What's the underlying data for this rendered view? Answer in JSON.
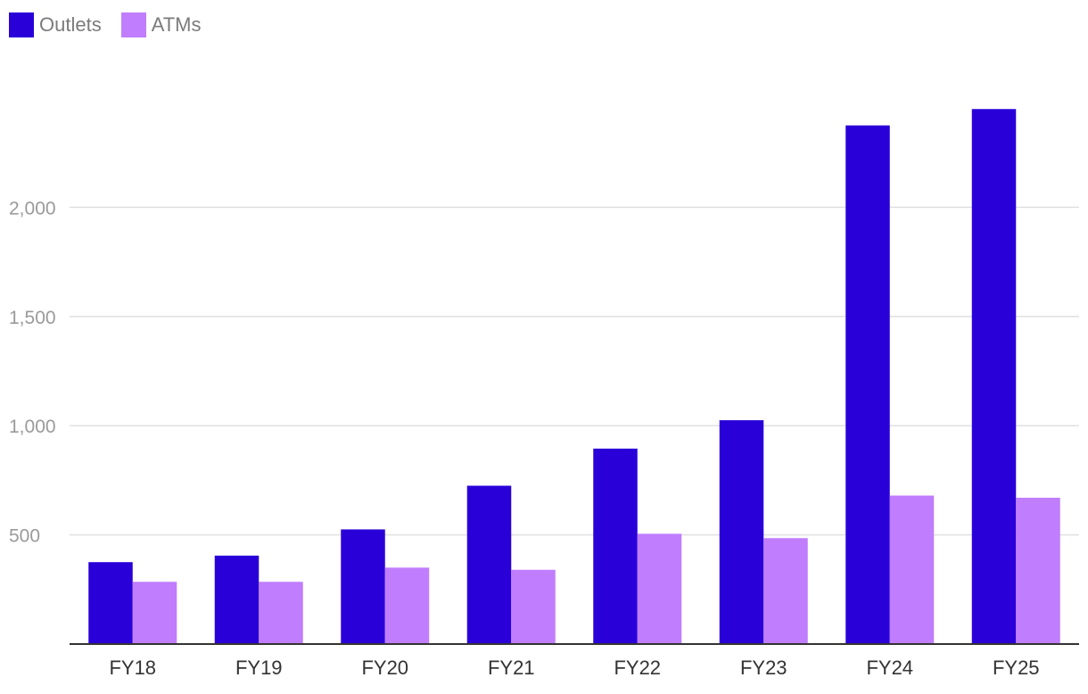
{
  "chart_data": {
    "type": "bar",
    "categories": [
      "FY18",
      "FY19",
      "FY20",
      "FY21",
      "FY22",
      "FY23",
      "FY24",
      "FY25"
    ],
    "series": [
      {
        "name": "Outlets",
        "color": "#2a00d9",
        "values": [
          375,
          405,
          525,
          725,
          895,
          1025,
          2375,
          2450
        ]
      },
      {
        "name": "ATMs",
        "color": "#c07dfd",
        "values": [
          285,
          285,
          350,
          340,
          505,
          485,
          680,
          670
        ]
      }
    ],
    "ylim": [
      0,
      2450
    ],
    "yticks": [
      500,
      1000,
      1500,
      2000
    ],
    "ytick_labels": [
      "500",
      "1,000",
      "1,500",
      "2,000"
    ],
    "grid": true,
    "legend_position": "top-left",
    "title": "",
    "xlabel": "",
    "ylabel": ""
  }
}
